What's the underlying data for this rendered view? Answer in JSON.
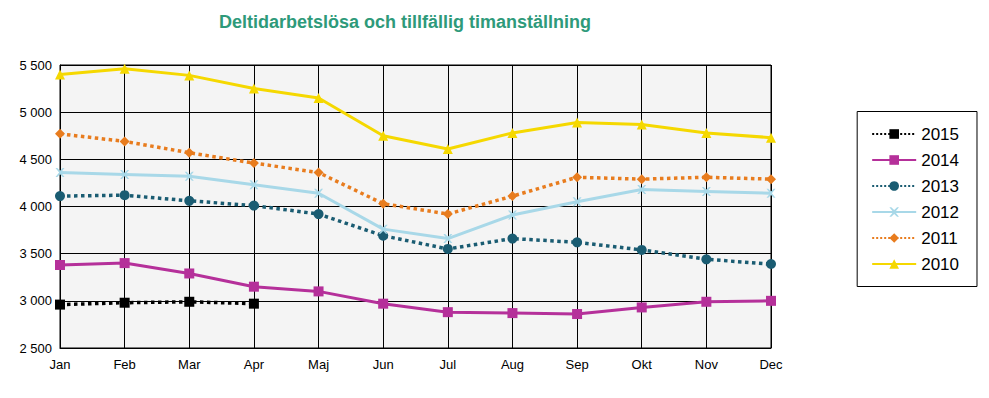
{
  "chart_data": {
    "type": "line",
    "title": "Deltidarbetslösa och tillfällig timanställning",
    "categories": [
      "Jan",
      "Feb",
      "Mar",
      "Apr",
      "Maj",
      "Jun",
      "Jul",
      "Aug",
      "Sep",
      "Okt",
      "Nov",
      "Dec"
    ],
    "series": [
      {
        "name": "2015",
        "color": "#000000",
        "marker": "square",
        "line_style": "dotted",
        "values": [
          2960,
          2980,
          2990,
          2970,
          null,
          null,
          null,
          null,
          null,
          null,
          null,
          null
        ]
      },
      {
        "name": "2014",
        "color": "#b5309a",
        "marker": "square",
        "line_style": "solid",
        "values": [
          3380,
          3400,
          3290,
          3150,
          3100,
          2970,
          2880,
          2870,
          2860,
          2930,
          2990,
          3000
        ]
      },
      {
        "name": "2013",
        "color": "#1a5c72",
        "marker": "circle",
        "line_style": "dotted",
        "values": [
          4110,
          4120,
          4060,
          4010,
          3920,
          3690,
          3550,
          3660,
          3620,
          3540,
          3440,
          3390
        ]
      },
      {
        "name": "2012",
        "color": "#a8d8e8",
        "marker": "cross",
        "line_style": "solid",
        "values": [
          4360,
          4340,
          4320,
          4230,
          4140,
          3760,
          3660,
          3910,
          4050,
          4180,
          4160,
          4140
        ]
      },
      {
        "name": "2011",
        "color": "#e87c1e",
        "marker": "diamond",
        "line_style": "dotted",
        "values": [
          4770,
          4690,
          4570,
          4460,
          4360,
          4030,
          3920,
          4110,
          4310,
          4290,
          4310,
          4290
        ]
      },
      {
        "name": "2010",
        "color": "#f5d800",
        "marker": "triangle",
        "line_style": "solid",
        "values": [
          5400,
          5460,
          5390,
          5250,
          5150,
          4750,
          4610,
          4780,
          4890,
          4870,
          4780,
          4730
        ]
      }
    ],
    "ylim": [
      2500,
      5500
    ],
    "yticks": [
      {
        "value": 2500,
        "label": "2 500"
      },
      {
        "value": 3000,
        "label": "3 000"
      },
      {
        "value": 3500,
        "label": "3 500"
      },
      {
        "value": 4000,
        "label": "4 000"
      },
      {
        "value": 4500,
        "label": "4 500"
      },
      {
        "value": 5000,
        "label": "5 000"
      },
      {
        "value": 5500,
        "label": "5 500"
      }
    ],
    "grid": true,
    "legend": "right"
  }
}
